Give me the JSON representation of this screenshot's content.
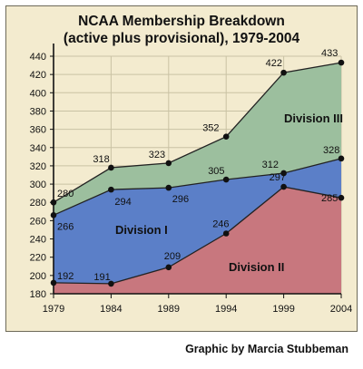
{
  "title_line1": "NCAA Membership Breakdown",
  "title_line2": "(active plus provisional), 1979-2004",
  "credit": "Graphic by Marcia Stubbeman",
  "colors": {
    "background": "#f3ebcf",
    "division_ii": "#c8777e",
    "division_i": "#5b7fc8",
    "division_iii": "#9cbf9e",
    "grid": "#c9c2a4",
    "axis": "#111111"
  },
  "chart_data": {
    "type": "area",
    "stacked": true,
    "title": "NCAA Membership Breakdown (active plus provisional), 1979-2004",
    "x": [
      1979,
      1984,
      1989,
      1994,
      1999,
      2004
    ],
    "x_tick_labels": [
      "1979",
      "1984",
      "1989",
      "1994",
      "1999",
      "2004"
    ],
    "y_ticks": [
      180,
      200,
      220,
      240,
      260,
      280,
      300,
      320,
      340,
      360,
      380,
      400,
      420,
      440
    ],
    "ylim": [
      180,
      440
    ],
    "grid": true,
    "series": [
      {
        "name": "Division II",
        "values": [
          192,
          191,
          209,
          246,
          297,
          285
        ],
        "labels": [
          "192",
          "191",
          "209",
          "246",
          "297",
          "285"
        ]
      },
      {
        "name": "Division I",
        "values": [
          266,
          294,
          296,
          305,
          312,
          328
        ],
        "labels": [
          "266",
          "294",
          "296",
          "305",
          "312",
          "328"
        ]
      },
      {
        "name": "Division III",
        "values": [
          280,
          318,
          323,
          352,
          422,
          433
        ],
        "labels": [
          "280",
          "318",
          "323",
          "352",
          "422",
          "433"
        ]
      }
    ]
  }
}
